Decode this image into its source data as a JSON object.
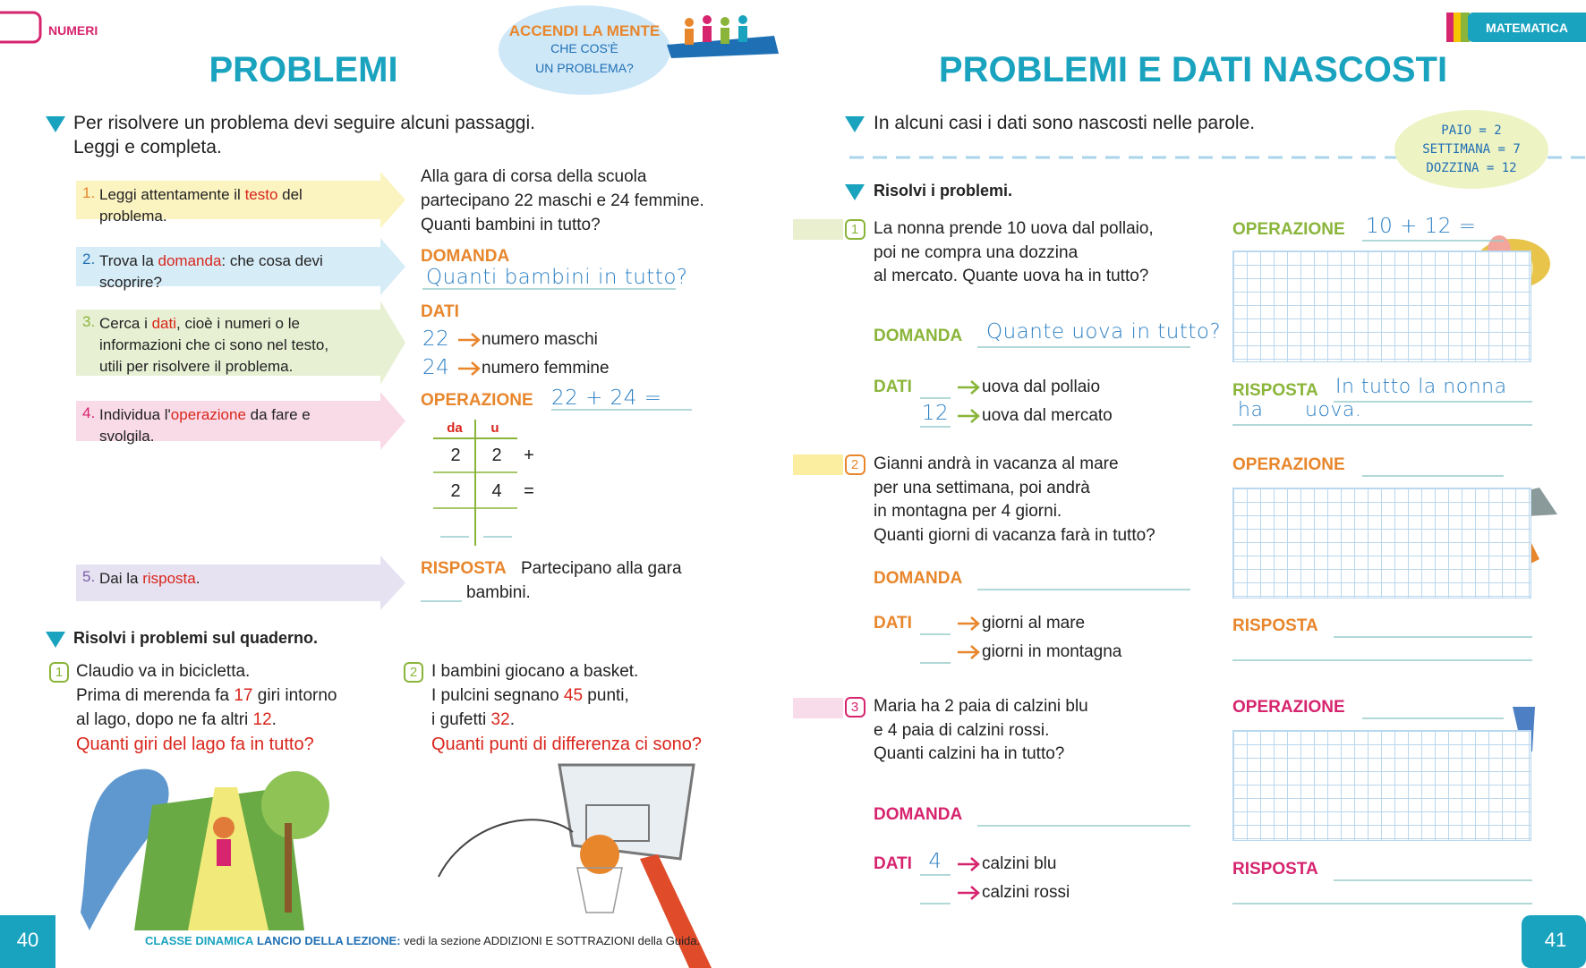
{
  "header": {
    "left_section": "NUMERI",
    "right_section": "MATEMATICA"
  },
  "left_page": {
    "title": "PROBLEMI",
    "badge": {
      "highlight": "ACCENDI LA MENTE",
      "lines": [
        "CHE COS'È",
        "UN PROBLEMA?"
      ]
    },
    "intro": [
      "Per risolvere un problema devi seguire alcuni passaggi.",
      "Leggi e completa."
    ],
    "steps": [
      {
        "number": "1.",
        "parts": [
          "Leggi attentamente il ",
          "testo",
          " del problema."
        ]
      },
      {
        "number": "2.",
        "parts": [
          "Trova la ",
          "domanda",
          ": che cosa devi scoprire?"
        ]
      },
      {
        "number": "3.",
        "parts": [
          "Cerca i ",
          "dati",
          ", cioè i numeri o le informazioni che ci sono nel testo, utili per risolvere il problema."
        ]
      },
      {
        "number": "4.",
        "parts": [
          "Individua l'",
          "operazione",
          " da fare e svolgila."
        ]
      },
      {
        "number": "5.",
        "parts": [
          "Dai la ",
          "risposta",
          "."
        ]
      }
    ],
    "example": {
      "text": [
        "Alla gara di corsa della scuola",
        "partecipano 22 maschi e 24 femmine.",
        "Quanti bambini in tutto?"
      ],
      "question_label": "DOMANDA",
      "question_answer": "Quanti bambini in tutto?",
      "data_label": "DATI",
      "data": [
        {
          "value": "22",
          "text": "numero maschi"
        },
        {
          "value": "24",
          "text": "numero femmine"
        }
      ],
      "operation_label": "OPERAZIONE",
      "operation_answer": "22 + 24 =",
      "column_headers": [
        "da",
        "u"
      ],
      "column_rows": [
        [
          "2",
          "2",
          "+"
        ],
        [
          "2",
          "4",
          "="
        ]
      ],
      "answer_label": "RISPOSTA",
      "answer_text": [
        "Partecipano alla gara",
        "bambini."
      ]
    },
    "exercise_instruction": "Risolvi i problemi sul quaderno.",
    "problems": [
      {
        "number": "1",
        "lines": [
          [
            "Claudio va in bicicletta."
          ],
          [
            "Prima di merenda fa ",
            "17",
            " giri intorno"
          ],
          [
            "al lago, dopo ne fa altri ",
            "12",
            "."
          ]
        ],
        "question": "Quanti giri del lago fa in tutto?"
      },
      {
        "number": "2",
        "lines": [
          [
            "I bambini giocano a basket."
          ],
          [
            "I pulcini segnano ",
            "45",
            " punti,"
          ],
          [
            "i gufetti ",
            "32",
            "."
          ]
        ],
        "question": "Quanti punti di differenza ci sono?"
      }
    ],
    "page_number": "40",
    "footer": {
      "brand": "CLASSE DINAMICA",
      "label": "LANCIO DELLA LEZIONE:",
      "text": "vedi la sezione ADDIZIONI E SOTTRAZIONI della Guida."
    }
  },
  "right_page": {
    "title": "PROBLEMI E DATI NASCOSTI",
    "intro": "In alcuni casi i dati sono nascosti nelle parole.",
    "hints": [
      "PAIO = 2",
      "SETTIMANA = 7",
      "DOZZINA = 12"
    ],
    "instruction": "Risolvi i problemi.",
    "problems": [
      {
        "number": "1",
        "lines": [
          "La nonna prende 10 uova dal pollaio,",
          "poi ne compra una dozzina",
          "al mercato. Quante uova ha in tutto?"
        ],
        "question_label": "DOMANDA",
        "question_answer": "Quante uova in tutto?",
        "data_label": "DATI",
        "data": [
          {
            "text": "uova dal pollaio"
          },
          {
            "value": "12",
            "text": "uova dal mercato"
          }
        ],
        "operation_label": "OPERAZIONE",
        "operation_answer": "10 + 12 =",
        "answer_label": "RISPOSTA",
        "answer_text": [
          "In tutto la nonna",
          "ha",
          "uova."
        ]
      },
      {
        "number": "2",
        "lines": [
          "Gianni andrà in vacanza al mare",
          "per una settimana, poi andrà",
          "in montagna per 4 giorni.",
          "Quanti giorni di vacanza farà in tutto?"
        ],
        "question_label": "DOMANDA",
        "data_label": "DATI",
        "data": [
          {
            "text": "giorni al mare"
          },
          {
            "text": "giorni in montagna"
          }
        ],
        "operation_label": "OPERAZIONE",
        "answer_label": "RISPOSTA"
      },
      {
        "number": "3",
        "lines": [
          "Maria ha 2 paia di calzini blu",
          "e 4 paia di calzini rossi.",
          "Quanti calzini ha in tutto?"
        ],
        "question_label": "DOMANDA",
        "data_label": "DATI",
        "data": [
          {
            "value": "4",
            "text": "calzini blu"
          },
          {
            "text": "calzini rossi"
          }
        ],
        "operation_label": "OPERAZIONE",
        "answer_label": "RISPOSTA"
      }
    ],
    "page_number": "41"
  }
}
